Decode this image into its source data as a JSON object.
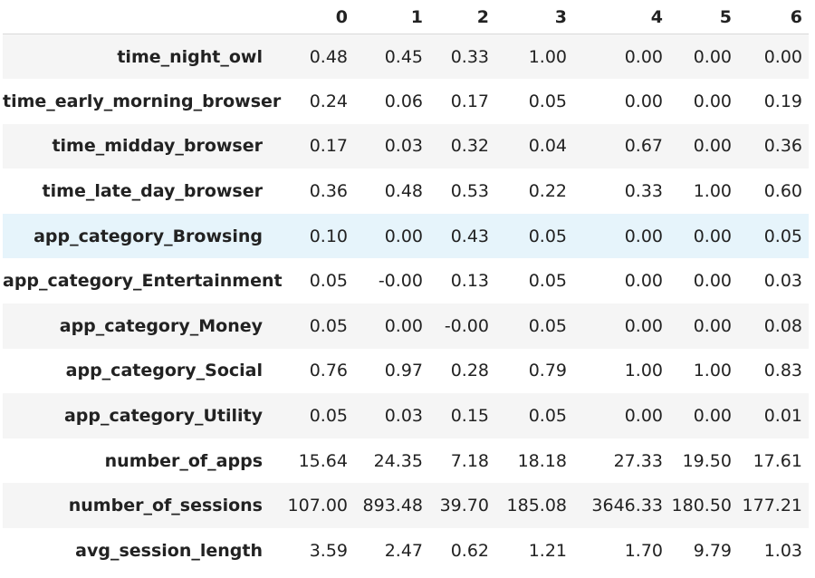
{
  "table": {
    "columns": [
      "0",
      "1",
      "2",
      "3",
      "4",
      "5",
      "6"
    ],
    "rows": [
      {
        "label": "time_night_owl",
        "values": [
          "0.48",
          "0.45",
          "0.33",
          "1.00",
          "0.00",
          "0.00",
          "0.00"
        ]
      },
      {
        "label": "time_early_morning_browser",
        "values": [
          "0.24",
          "0.06",
          "0.17",
          "0.05",
          "0.00",
          "0.00",
          "0.19"
        ]
      },
      {
        "label": "time_midday_browser",
        "values": [
          "0.17",
          "0.03",
          "0.32",
          "0.04",
          "0.67",
          "0.00",
          "0.36"
        ]
      },
      {
        "label": "time_late_day_browser",
        "values": [
          "0.36",
          "0.48",
          "0.53",
          "0.22",
          "0.33",
          "1.00",
          "0.60"
        ]
      },
      {
        "label": "app_category_Browsing",
        "values": [
          "0.10",
          "0.00",
          "0.43",
          "0.05",
          "0.00",
          "0.00",
          "0.05"
        ]
      },
      {
        "label": "app_category_Entertainment",
        "values": [
          "0.05",
          "-0.00",
          "0.13",
          "0.05",
          "0.00",
          "0.00",
          "0.03"
        ]
      },
      {
        "label": "app_category_Money",
        "values": [
          "0.05",
          "0.00",
          "-0.00",
          "0.05",
          "0.00",
          "0.00",
          "0.08"
        ]
      },
      {
        "label": "app_category_Social",
        "values": [
          "0.76",
          "0.97",
          "0.28",
          "0.79",
          "1.00",
          "1.00",
          "0.83"
        ]
      },
      {
        "label": "app_category_Utility",
        "values": [
          "0.05",
          "0.03",
          "0.15",
          "0.05",
          "0.00",
          "0.00",
          "0.01"
        ]
      },
      {
        "label": "number_of_apps",
        "values": [
          "15.64",
          "24.35",
          "7.18",
          "18.18",
          "27.33",
          "19.50",
          "17.61"
        ]
      },
      {
        "label": "number_of_sessions",
        "values": [
          "107.00",
          "893.48",
          "39.70",
          "185.08",
          "3646.33",
          "180.50",
          "177.21"
        ]
      },
      {
        "label": "avg_session_length",
        "values": [
          "3.59",
          "2.47",
          "0.62",
          "1.21",
          "1.70",
          "9.79",
          "1.03"
        ]
      }
    ]
  },
  "colors": {
    "row_stripe": "#f5f5f5",
    "row_hover": "#e6f4fb",
    "header_border": "#d8d8d8",
    "text": "#222222"
  }
}
